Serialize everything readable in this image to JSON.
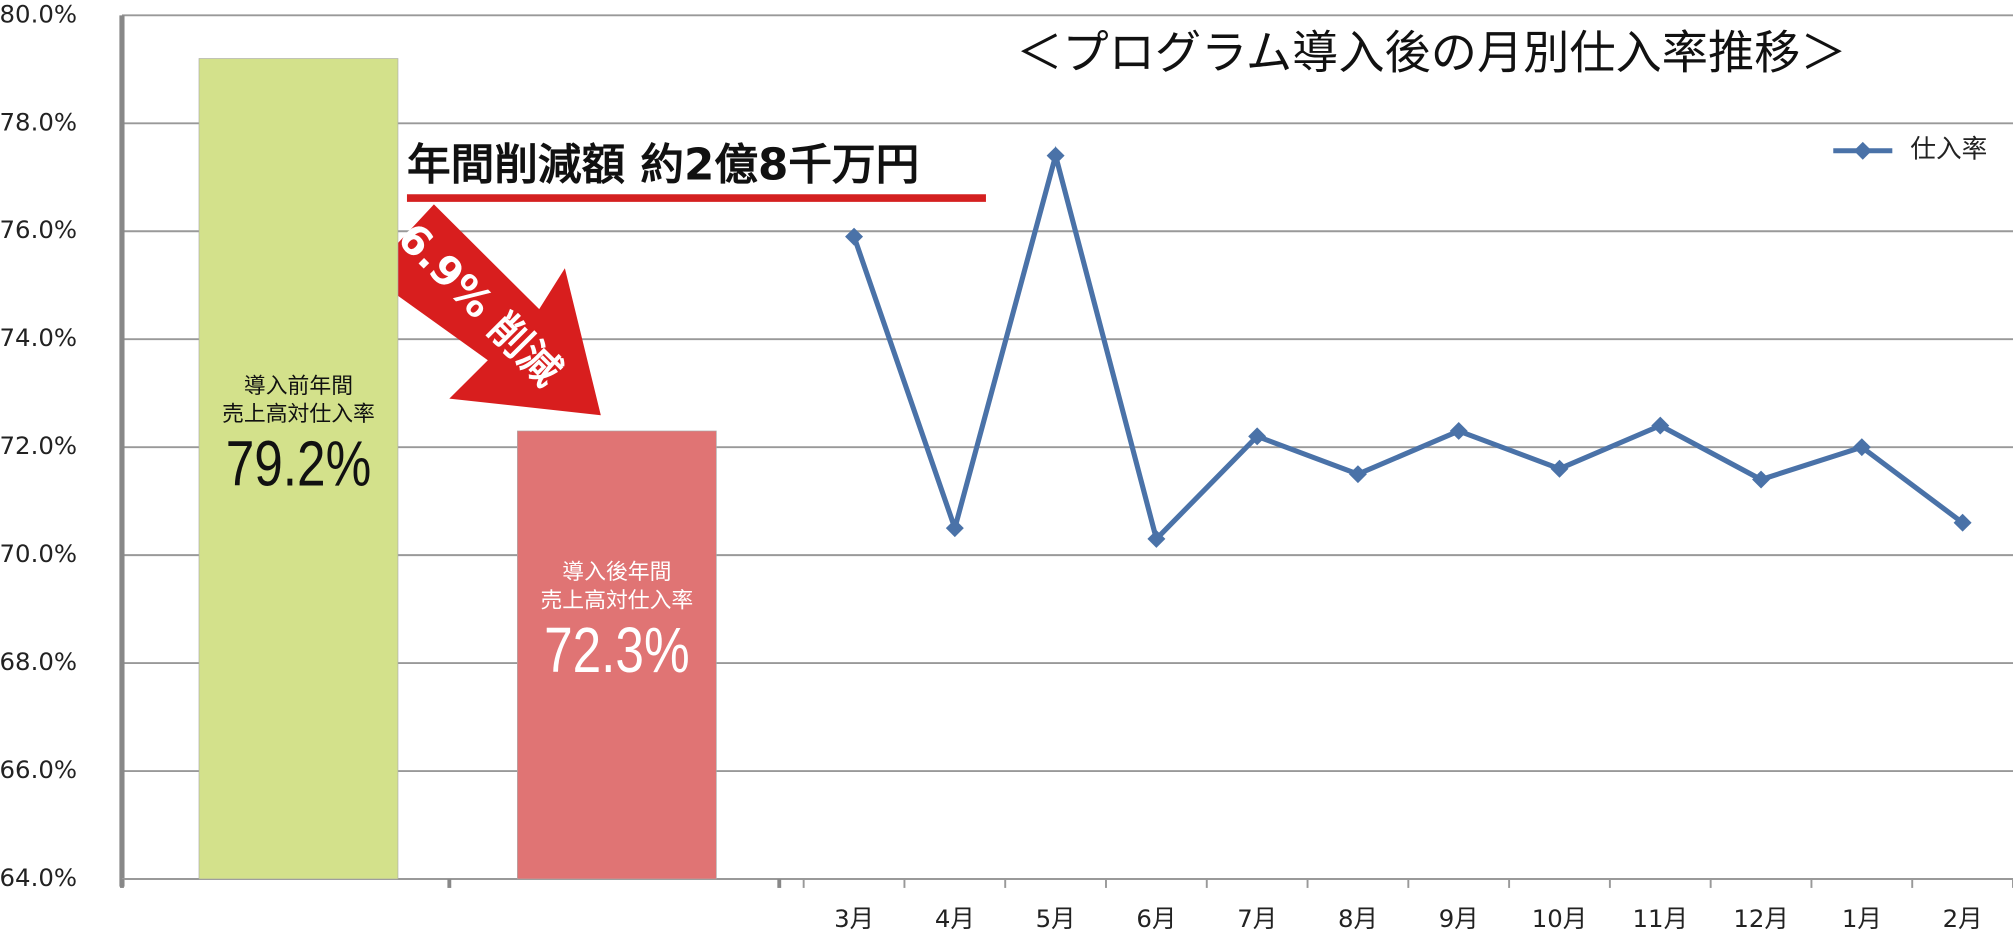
{
  "chart_data": {
    "type": "line",
    "title": "＜プログラム導入後の月別仕入率推移＞",
    "categories": [
      "3月",
      "4月",
      "5月",
      "6月",
      "7月",
      "8月",
      "9月",
      "10月",
      "11月",
      "12月",
      "1月",
      "2月"
    ],
    "series": [
      {
        "name": "仕入率",
        "color": "#4a72a8",
        "values": [
          75.9,
          70.5,
          77.4,
          70.3,
          72.2,
          71.5,
          72.3,
          71.6,
          72.4,
          71.4,
          72.0,
          70.6
        ]
      }
    ],
    "bars": [
      {
        "label_lines": [
          "導入前年間",
          "売上高対仕入率"
        ],
        "value": 79.2,
        "value_label": "79.2%",
        "color": "#d3e18b",
        "text_color": "#111"
      },
      {
        "label_lines": [
          "導入後年間",
          "売上高対仕入率"
        ],
        "value": 72.3,
        "value_label": "72.3%",
        "color": "#e07474",
        "text_color": "#fff"
      }
    ],
    "annotations": [
      "年間削減額 約2億8千万円",
      "6.9% 削減"
    ],
    "ylim": [
      64,
      80
    ],
    "yticks": [
      {
        "value": 64,
        "label": "64.0%"
      },
      {
        "value": 66,
        "label": "66.0%"
      },
      {
        "value": 68,
        "label": "68.0%"
      },
      {
        "value": 70,
        "label": "70.0%"
      },
      {
        "value": 72,
        "label": "72.0%"
      },
      {
        "value": 74,
        "label": "74.0%"
      },
      {
        "value": 76,
        "label": "76.0%"
      },
      {
        "value": 78,
        "label": "78.0%"
      },
      {
        "value": 80,
        "label": "80.0%"
      }
    ],
    "grid": true,
    "legend": "top-right"
  }
}
